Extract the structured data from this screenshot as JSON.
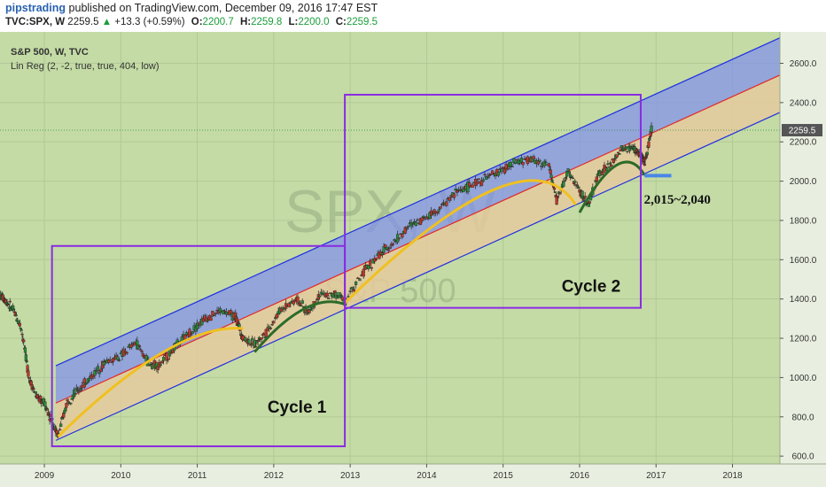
{
  "header": {
    "author": "pipstrading",
    "published_text": "published on TradingView.com, December 09, 2016 17:47 EST",
    "symbol": "TVC:SPX, W",
    "last": "2259.5",
    "change_arrow": "▲",
    "change": "+13.3 (+0.59%)",
    "open_label": "O:",
    "open": "2200.7",
    "high_label": "H:",
    "high": "2259.8",
    "low_label": "L:",
    "low": "2200.0",
    "close_label": "C:",
    "close": "2259.5"
  },
  "chart_data": {
    "type": "line",
    "title": "S&P 500, W, TVC",
    "indicator": "Lin Reg (2, -2, true, true, 404, low)",
    "watermark_symbol": "SPX, W",
    "watermark_name": "S&P 500",
    "x_ticks": [
      "2009",
      "2010",
      "2011",
      "2012",
      "2013",
      "2014",
      "2015",
      "2016",
      "2017",
      "2018"
    ],
    "y_ticks": [
      600.0,
      800.0,
      1000.0,
      1200.0,
      1400.0,
      1600.0,
      1800.0,
      2000.0,
      2200.0,
      2400.0,
      2600.0
    ],
    "y_tick_labels": [
      "600.0",
      "800.0",
      "1000.0",
      "1200.0",
      "1400.0",
      "1600.0",
      "1800.0",
      "2000.0",
      "2200.0",
      "2400.0",
      "2600.0"
    ],
    "ylim": [
      560,
      2760
    ],
    "xlim": [
      2008.42,
      2018.62
    ],
    "last_price": 2259.5,
    "last_price_label": "2259.5",
    "series": [
      {
        "kind": "price",
        "x": [
          2008.42,
          2008.5,
          2008.6,
          2008.7,
          2008.8,
          2008.9,
          2009.0,
          2009.1,
          2009.18,
          2009.3,
          2009.45,
          2009.6,
          2009.8,
          2010.0,
          2010.2,
          2010.35,
          2010.5,
          2010.7,
          2010.9,
          2011.1,
          2011.3,
          2011.5,
          2011.6,
          2011.75,
          2011.9,
          2012.1,
          2012.3,
          2012.45,
          2012.6,
          2012.8,
          2012.95,
          2013.2,
          2013.4,
          2013.6,
          2013.8,
          2014.0,
          2014.2,
          2014.4,
          2014.6,
          2014.8,
          2015.0,
          2015.2,
          2015.4,
          2015.6,
          2015.7,
          2015.85,
          2016.0,
          2016.12,
          2016.25,
          2016.4,
          2016.55,
          2016.7,
          2016.8,
          2016.85,
          2016.94
        ],
        "y": [
          1420,
          1390,
          1340,
          1250,
          1000,
          900,
          870,
          780,
          700,
          880,
          940,
          1000,
          1080,
          1110,
          1180,
          1080,
          1060,
          1150,
          1230,
          1300,
          1340,
          1310,
          1200,
          1170,
          1230,
          1350,
          1400,
          1330,
          1420,
          1420,
          1400,
          1550,
          1630,
          1700,
          1780,
          1820,
          1870,
          1950,
          1980,
          2020,
          2060,
          2100,
          2110,
          2080,
          1900,
          2050,
          1950,
          1880,
          2040,
          2080,
          2160,
          2170,
          2130,
          2090,
          2259.5
        ]
      },
      {
        "kind": "regression-upper",
        "x": [
          2009.15,
          2018.62
        ],
        "y": [
          1060,
          2730
        ]
      },
      {
        "kind": "regression-mid",
        "x": [
          2009.15,
          2018.62
        ],
        "y": [
          870,
          2540
        ]
      },
      {
        "kind": "regression-lower",
        "x": [
          2009.15,
          2018.62
        ],
        "y": [
          680,
          2350
        ]
      }
    ],
    "annotations": [
      {
        "type": "box",
        "label": "Cycle 1",
        "x1": 2009.1,
        "x2": 2012.93,
        "y1": 650,
        "y2": 1670
      },
      {
        "type": "box",
        "label": "Cycle 2",
        "x1": 2012.93,
        "x2": 2016.8,
        "y1": 1355,
        "y2": 2440
      },
      {
        "type": "text",
        "label": "2,015~2,040",
        "x": 2017.0,
        "y": 1985
      },
      {
        "type": "level",
        "x1": 2016.85,
        "x2": 2017.2,
        "y": 2028
      }
    ],
    "arcs": [
      {
        "color": "#f0c020",
        "points": [
          [
            2009.18,
            700
          ],
          [
            2010.7,
            1280
          ],
          [
            2011.6,
            1250
          ]
        ]
      },
      {
        "color": "#2d6b2a",
        "points": [
          [
            2011.75,
            1130
          ],
          [
            2012.45,
            1450
          ],
          [
            2012.95,
            1370
          ]
        ]
      },
      {
        "color": "#f0c020",
        "points": [
          [
            2012.93,
            1380
          ],
          [
            2015.3,
            2280
          ],
          [
            2015.95,
            1880
          ]
        ]
      },
      {
        "color": "#2d6b2a",
        "points": [
          [
            2016.0,
            1840
          ],
          [
            2016.55,
            2230
          ],
          [
            2016.85,
            2030
          ]
        ]
      }
    ]
  }
}
